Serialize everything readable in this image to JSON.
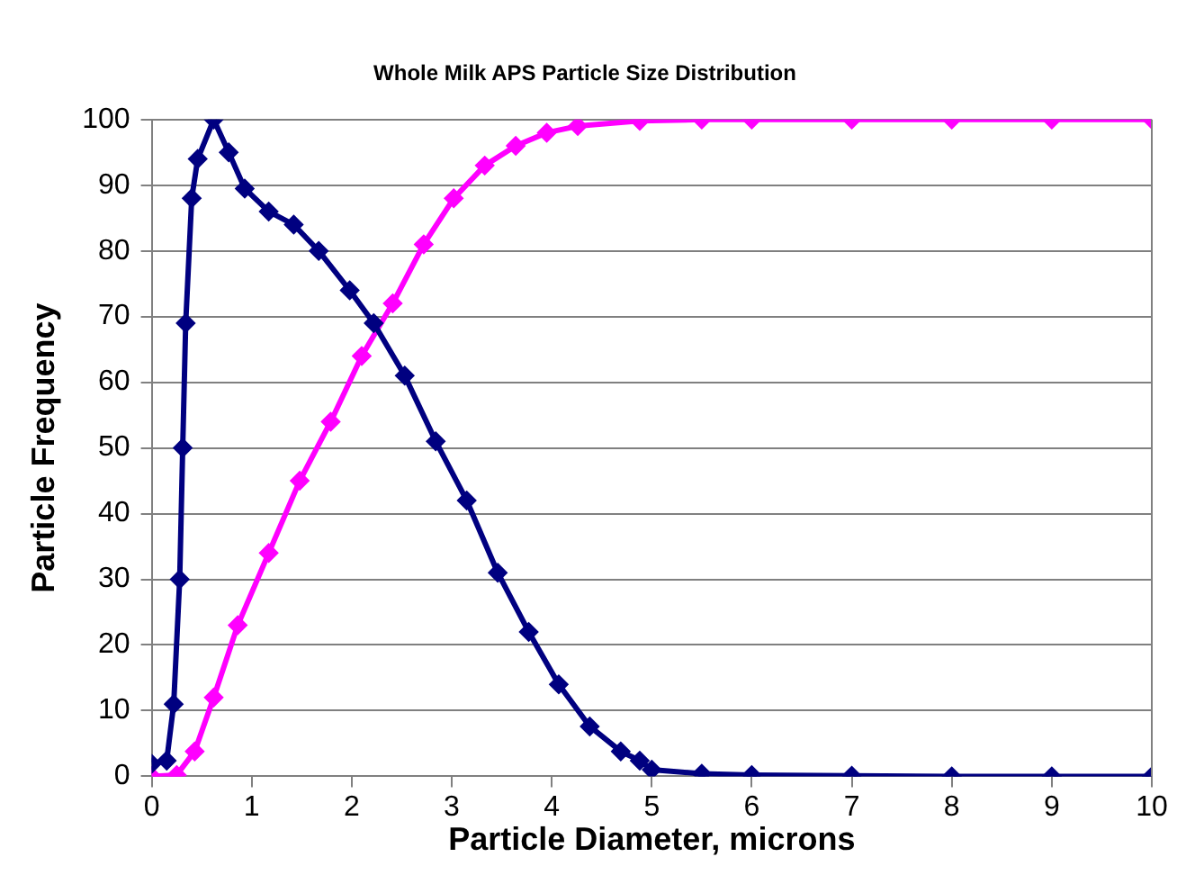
{
  "chart_data": {
    "type": "line",
    "title": "Whole Milk APS Particle Size Distribution",
    "xlabel": "Particle Diameter, microns",
    "ylabel": "Particle Frequency",
    "xlim": [
      0,
      10
    ],
    "xticks": [
      0,
      1,
      2,
      3,
      4,
      5,
      6,
      7,
      8,
      9,
      10
    ],
    "ylim": [
      0,
      100
    ],
    "yticks": [
      0,
      10,
      20,
      30,
      40,
      50,
      60,
      70,
      80,
      90,
      100
    ],
    "grid": "y",
    "marker": "diamond",
    "line_style": "solid",
    "series": [
      {
        "color": "#000080",
        "x": [
          0,
          0.15,
          0.22,
          0.28,
          0.31,
          0.34,
          0.4,
          0.46,
          0.62,
          0.77,
          0.93,
          1.17,
          1.42,
          1.67,
          1.98,
          2.22,
          2.53,
          2.84,
          3.15,
          3.46,
          3.77,
          4.07,
          4.38,
          4.69,
          4.88,
          5,
          5.5,
          6,
          7,
          8,
          9,
          10
        ],
        "values": [
          1.9,
          2.4,
          11,
          30,
          50,
          69,
          88,
          94,
          100,
          95,
          89.5,
          86,
          84,
          80,
          74,
          69,
          61,
          51,
          42,
          31,
          22,
          14,
          7.6,
          3.8,
          2.4,
          1,
          0.4,
          0.2,
          0.1,
          0,
          0,
          0
        ]
      },
      {
        "color": "#ff00ff",
        "x": [
          0,
          0.25,
          0.43,
          0.62,
          0.86,
          1.17,
          1.48,
          1.79,
          2.1,
          2.41,
          2.72,
          3.02,
          3.33,
          3.64,
          3.95,
          4.26,
          4.88,
          5.5,
          6,
          7,
          8,
          9,
          10
        ],
        "values": [
          0,
          0.2,
          3.8,
          12,
          23,
          34,
          45,
          54,
          64,
          72,
          81,
          88,
          93,
          96,
          98,
          99,
          99.8,
          100,
          100,
          100,
          100,
          100,
          100
        ]
      }
    ]
  }
}
